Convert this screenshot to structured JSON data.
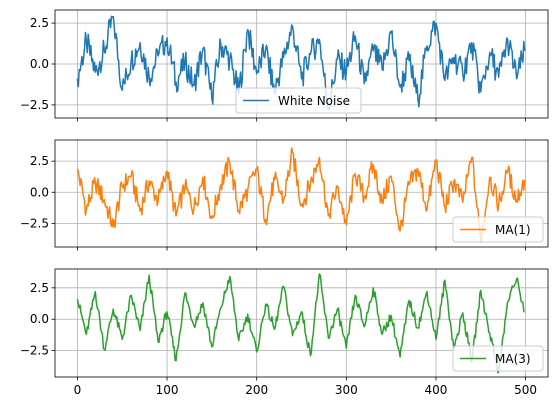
{
  "chart_data": [
    {
      "type": "line",
      "ylim": [
        -3.3,
        3.3
      ],
      "xlim": [
        -25,
        525
      ],
      "yticks": [
        -2.5,
        0.0,
        2.5
      ],
      "ytick_labels": [
        "−2.5",
        "0.0",
        "2.5"
      ],
      "grid": true,
      "legend_position": "bottom-center",
      "color": "#1f77b4",
      "series": [
        {
          "name": "White Noise",
          "x": [
            0,
            10,
            20,
            30,
            40,
            50,
            60,
            70,
            80,
            90,
            100,
            110,
            120,
            130,
            140,
            150,
            160,
            170,
            180,
            190,
            200,
            210,
            220,
            230,
            240,
            250,
            260,
            270,
            280,
            290,
            300,
            310,
            320,
            330,
            340,
            350,
            360,
            370,
            380,
            390,
            400,
            410,
            420,
            430,
            440,
            450,
            460,
            470,
            480,
            490,
            499
          ],
          "values": [
            -0.9,
            1.4,
            -0.5,
            0.8,
            2.9,
            -1.6,
            0.2,
            1.3,
            -0.8,
            0.5,
            1.6,
            -1.1,
            0.1,
            -1.3,
            0.9,
            -2.1,
            1.2,
            0.3,
            -1.8,
            2.1,
            -0.6,
            0.9,
            -1.7,
            0.4,
            2.3,
            -0.9,
            0.6,
            1.5,
            -2.8,
            0.3,
            -0.5,
            1.7,
            -1.2,
            0.8,
            -0.3,
            1.9,
            -1.4,
            0.2,
            -2.2,
            1.1,
            2.5,
            -1.0,
            0.4,
            -0.6,
            1.3,
            -1.7,
            0.7,
            -0.8,
            1.5,
            -0.9,
            0.8
          ]
        }
      ]
    },
    {
      "type": "line",
      "ylim": [
        -4.4,
        4.2
      ],
      "xlim": [
        -25,
        525
      ],
      "yticks": [
        -2.5,
        0.0,
        2.5
      ],
      "ytick_labels": [
        "−2.5",
        "0.0",
        "2.5"
      ],
      "grid": true,
      "legend_position": "bottom-right",
      "color": "#ff7f0e",
      "series": [
        {
          "name": "MA(1)",
          "x": [
            0,
            10,
            20,
            30,
            40,
            50,
            60,
            70,
            80,
            90,
            100,
            110,
            120,
            130,
            140,
            150,
            160,
            170,
            180,
            190,
            200,
            210,
            220,
            230,
            240,
            250,
            260,
            270,
            280,
            290,
            300,
            310,
            320,
            330,
            340,
            350,
            360,
            370,
            380,
            390,
            400,
            410,
            420,
            430,
            440,
            450,
            460,
            470,
            480,
            490,
            499
          ],
          "values": [
            1.9,
            -1.4,
            0.8,
            -0.6,
            -2.8,
            0.5,
            1.3,
            -1.5,
            0.9,
            -0.7,
            1.7,
            -1.9,
            0.4,
            -1.3,
            1.2,
            -2.1,
            0.6,
            2.4,
            -1.5,
            0.2,
            1.8,
            -2.2,
            1.0,
            -0.6,
            3.2,
            -1.1,
            0.7,
            2.8,
            -1.9,
            0.5,
            -2.6,
            1.5,
            -0.4,
            2.2,
            -0.8,
            1.3,
            -3.1,
            0.6,
            1.8,
            -1.4,
            2.6,
            -1.2,
            0.9,
            -0.8,
            2.8,
            -4.0,
            1.2,
            -1.0,
            1.6,
            -0.6,
            1.0
          ]
        }
      ]
    },
    {
      "type": "line",
      "ylim": [
        -4.6,
        4.0
      ],
      "xlim": [
        -25,
        525
      ],
      "xticks": [
        0,
        100,
        200,
        300,
        400,
        500
      ],
      "yticks": [
        -2.5,
        0.0,
        2.5
      ],
      "ytick_labels": [
        "−2.5",
        "0.0",
        "2.5"
      ],
      "grid": true,
      "legend_position": "bottom-right",
      "color": "#2ca02c",
      "series": [
        {
          "name": "MA(3)",
          "x": [
            0,
            10,
            20,
            30,
            40,
            50,
            60,
            70,
            80,
            90,
            100,
            110,
            120,
            130,
            140,
            150,
            160,
            170,
            180,
            190,
            200,
            210,
            220,
            230,
            240,
            250,
            260,
            270,
            280,
            290,
            300,
            310,
            320,
            330,
            340,
            350,
            360,
            370,
            380,
            390,
            400,
            410,
            420,
            430,
            440,
            450,
            460,
            470,
            480,
            490,
            499
          ],
          "values": [
            1.6,
            -1.2,
            2.2,
            -2.4,
            0.8,
            -1.6,
            1.9,
            -0.9,
            3.5,
            -1.8,
            0.6,
            -3.3,
            2.1,
            -0.5,
            1.3,
            -2.2,
            0.9,
            3.4,
            -1.7,
            0.4,
            -2.6,
            1.2,
            -0.8,
            2.6,
            -1.3,
            0.6,
            -2.9,
            3.6,
            -1.5,
            0.8,
            -2.3,
            1.9,
            -0.6,
            2.5,
            -1.2,
            0.3,
            -3.0,
            1.5,
            -0.7,
            2.2,
            -1.6,
            3.1,
            -2.4,
            0.5,
            -3.4,
            2.3,
            -1.1,
            -4.2,
            1.4,
            3.2,
            0.6
          ]
        }
      ]
    }
  ],
  "xtick_labels": [
    "0",
    "100",
    "200",
    "300",
    "400",
    "500"
  ]
}
